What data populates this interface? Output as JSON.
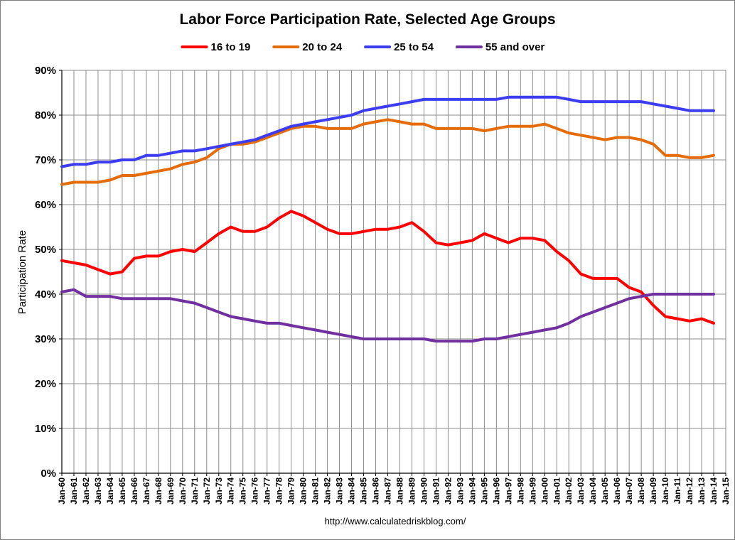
{
  "chart_data": {
    "type": "line",
    "title": "Labor Force Participation Rate, Selected Age Groups",
    "ylabel": "Participation Rate",
    "xlabel": "",
    "ylim": [
      0,
      90
    ],
    "xlim": [
      1960,
      2015
    ],
    "yticks": [
      0,
      10,
      20,
      30,
      40,
      50,
      60,
      70,
      80,
      90
    ],
    "ytick_labels": [
      "0%",
      "10%",
      "20%",
      "30%",
      "40%",
      "50%",
      "60%",
      "70%",
      "80%",
      "90%"
    ],
    "xtick_labels": [
      "Jan-60",
      "Jan-61",
      "Jan-62",
      "Jan-63",
      "Jan-64",
      "Jan-65",
      "Jan-66",
      "Jan-67",
      "Jan-68",
      "Jan-69",
      "Jan-70",
      "Jan-71",
      "Jan-72",
      "Jan-73",
      "Jan-74",
      "Jan-75",
      "Jan-76",
      "Jan-77",
      "Jan-78",
      "Jan-79",
      "Jan-80",
      "Jan-81",
      "Jan-82",
      "Jan-83",
      "Jan-84",
      "Jan-85",
      "Jan-86",
      "Jan-87",
      "Jan-88",
      "Jan-89",
      "Jan-90",
      "Jan-91",
      "Jan-92",
      "Jan-93",
      "Jan-94",
      "Jan-95",
      "Jan-96",
      "Jan-97",
      "Jan-98",
      "Jan-99",
      "Jan-00",
      "Jan-01",
      "Jan-02",
      "Jan-03",
      "Jan-04",
      "Jan-05",
      "Jan-06",
      "Jan-07",
      "Jan-08",
      "Jan-09",
      "Jan-10",
      "Jan-11",
      "Jan-12",
      "Jan-13",
      "Jan-14",
      "Jan-15"
    ],
    "grid": true,
    "legend_position": "top",
    "source": "http://www.calculatedriskblog.com/",
    "series": [
      {
        "name": "16 to 19",
        "color": "#ff0000",
        "x": [
          1960,
          1961,
          1962,
          1963,
          1964,
          1965,
          1966,
          1967,
          1968,
          1969,
          1970,
          1971,
          1972,
          1973,
          1974,
          1975,
          1976,
          1977,
          1978,
          1979,
          1980,
          1981,
          1982,
          1983,
          1984,
          1985,
          1986,
          1987,
          1988,
          1989,
          1990,
          1991,
          1992,
          1993,
          1994,
          1995,
          1996,
          1997,
          1998,
          1999,
          2000,
          2001,
          2002,
          2003,
          2004,
          2005,
          2006,
          2007,
          2008,
          2009,
          2010,
          2011,
          2012,
          2013,
          2014
        ],
        "values": [
          47.5,
          47,
          46.5,
          45.5,
          44.5,
          45,
          48,
          48.5,
          48.5,
          49.5,
          50,
          49.5,
          51.5,
          53.5,
          55,
          54,
          54,
          55,
          57,
          58.5,
          57.5,
          56,
          54.5,
          53.5,
          53.5,
          54,
          54.5,
          54.5,
          55,
          56,
          54,
          51.5,
          51,
          51.5,
          52,
          53.5,
          52.5,
          51.5,
          52.5,
          52.5,
          52,
          49.5,
          47.5,
          44.5,
          43.5,
          43.5,
          43.5,
          41.5,
          40.5,
          37.5,
          35,
          34.5,
          34,
          34.5,
          33.5
        ]
      },
      {
        "name": "20 to 24",
        "color": "#e46c0a",
        "x": [
          1960,
          1961,
          1962,
          1963,
          1964,
          1965,
          1966,
          1967,
          1968,
          1969,
          1970,
          1971,
          1972,
          1973,
          1974,
          1975,
          1976,
          1977,
          1978,
          1979,
          1980,
          1981,
          1982,
          1983,
          1984,
          1985,
          1986,
          1987,
          1988,
          1989,
          1990,
          1991,
          1992,
          1993,
          1994,
          1995,
          1996,
          1997,
          1998,
          1999,
          2000,
          2001,
          2002,
          2003,
          2004,
          2005,
          2006,
          2007,
          2008,
          2009,
          2010,
          2011,
          2012,
          2013,
          2014
        ],
        "values": [
          64.5,
          65,
          65,
          65,
          65.5,
          66.5,
          66.5,
          67,
          67.5,
          68,
          69,
          69.5,
          70.5,
          72.5,
          73.5,
          73.5,
          74,
          75,
          76,
          77,
          77.5,
          77.5,
          77,
          77,
          77,
          78,
          78.5,
          79,
          78.5,
          78,
          78,
          77,
          77,
          77,
          77,
          76.5,
          77,
          77.5,
          77.5,
          77.5,
          78,
          77,
          76,
          75.5,
          75,
          74.5,
          75,
          75,
          74.5,
          73.5,
          71,
          71,
          70.5,
          70.5,
          71
        ]
      },
      {
        "name": "25 to 54",
        "color": "#3c3cf0",
        "x": [
          1960,
          1961,
          1962,
          1963,
          1964,
          1965,
          1966,
          1967,
          1968,
          1969,
          1970,
          1971,
          1972,
          1973,
          1974,
          1975,
          1976,
          1977,
          1978,
          1979,
          1980,
          1981,
          1982,
          1983,
          1984,
          1985,
          1986,
          1987,
          1988,
          1989,
          1990,
          1991,
          1992,
          1993,
          1994,
          1995,
          1996,
          1997,
          1998,
          1999,
          2000,
          2001,
          2002,
          2003,
          2004,
          2005,
          2006,
          2007,
          2008,
          2009,
          2010,
          2011,
          2012,
          2013,
          2014
        ],
        "values": [
          68.5,
          69,
          69,
          69.5,
          69.5,
          70,
          70,
          71,
          71,
          71.5,
          72,
          72,
          72.5,
          73,
          73.5,
          74,
          74.5,
          75.5,
          76.5,
          77.5,
          78,
          78.5,
          79,
          79.5,
          80,
          81,
          81.5,
          82,
          82.5,
          83,
          83.5,
          83.5,
          83.5,
          83.5,
          83.5,
          83.5,
          83.5,
          84,
          84,
          84,
          84,
          84,
          83.5,
          83,
          83,
          83,
          83,
          83,
          83,
          82.5,
          82,
          81.5,
          81,
          81,
          81
        ]
      },
      {
        "name": "55 and over",
        "color": "#7030a0",
        "x": [
          1960,
          1961,
          1962,
          1963,
          1964,
          1965,
          1966,
          1967,
          1968,
          1969,
          1970,
          1971,
          1972,
          1973,
          1974,
          1975,
          1976,
          1977,
          1978,
          1979,
          1980,
          1981,
          1982,
          1983,
          1984,
          1985,
          1986,
          1987,
          1988,
          1989,
          1990,
          1991,
          1992,
          1993,
          1994,
          1995,
          1996,
          1997,
          1998,
          1999,
          2000,
          2001,
          2002,
          2003,
          2004,
          2005,
          2006,
          2007,
          2008,
          2009,
          2010,
          2011,
          2012,
          2013,
          2014
        ],
        "values": [
          40.5,
          41,
          39.5,
          39.5,
          39.5,
          39,
          39,
          39,
          39,
          39,
          38.5,
          38,
          37,
          36,
          35,
          34.5,
          34,
          33.5,
          33.5,
          33,
          32.5,
          32,
          31.5,
          31,
          30.5,
          30,
          30,
          30,
          30,
          30,
          30,
          29.5,
          29.5,
          29.5,
          29.5,
          30,
          30,
          30.5,
          31,
          31.5,
          32,
          32.5,
          33.5,
          35,
          36,
          37,
          38,
          39,
          39.5,
          40,
          40,
          40,
          40,
          40,
          40
        ]
      }
    ]
  }
}
